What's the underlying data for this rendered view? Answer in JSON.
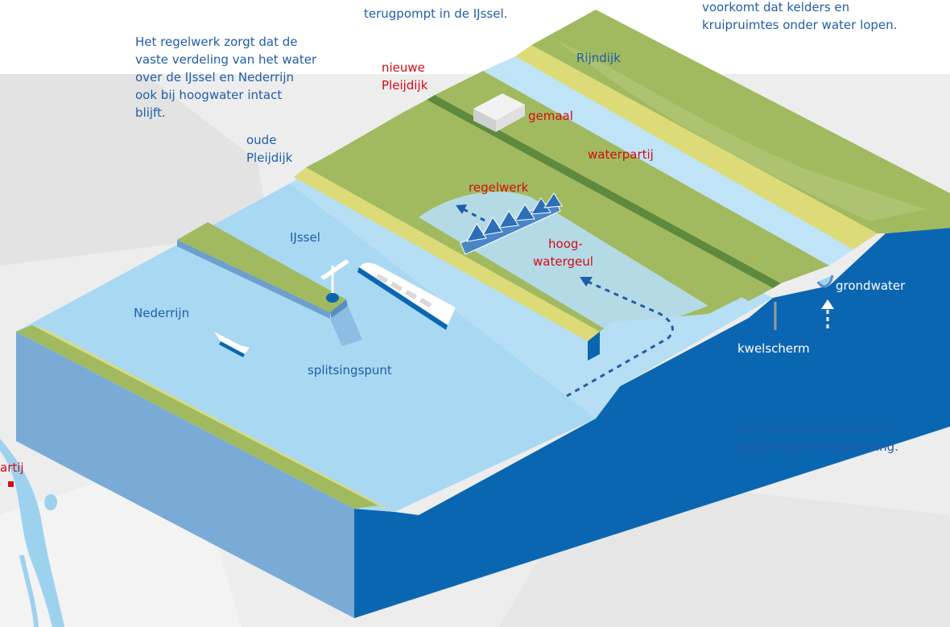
{
  "colors": {
    "background_map": "#ededee",
    "water_light": "#bfe3f7",
    "water_mid": "#9dd2ef",
    "water_deep": "#0b66b2",
    "grass": "#a1ba5f",
    "dike_yellow": "#dcdb78",
    "dike_dark": "#5f8a3e",
    "label_blue": "#1f5ea8",
    "label_red": "#d40b15"
  },
  "annotations": {
    "top_center_line": "terugpompt in de IJssel.",
    "top_right_lines": [
      "voorkomt dat kelders en",
      "kruipruimtes onder water lopen."
    ],
    "regelwerk_note": [
      "Het regelwerk zorgt dat de",
      "vaste verdeling van het water",
      "over de IJssel en Nederrijn",
      "ook bij hoogwater intact",
      "blijft."
    ],
    "kwelscherm_note": [
      "Het kwelscherm beschermt",
      "de dijk tegen verzwakking."
    ]
  },
  "labels": {
    "nieuwe_pleijdijk": [
      "nieuwe",
      "Pleijdijk"
    ],
    "oude_pleijdijk": [
      "oude",
      "Pleijdijk"
    ],
    "rijndijk": "Rijndijk",
    "gemaal": "gemaal",
    "waterpartij": "waterpartij",
    "regelwerk": "regelwerk",
    "hoogwatergeul": [
      "hoog-",
      "watergeul"
    ],
    "ijssel": "IJssel",
    "nederrijn": "Nederrijn",
    "splitsingspunt": "splitsingspunt",
    "grondwater": "grondwater",
    "kwelscherm": "kwelscherm",
    "map_fragment": "artij"
  },
  "icons": [
    "ship-icon",
    "small-boat-icon",
    "wind-turbine-icon",
    "pumping-station-icon",
    "regulator-gates-icon",
    "flow-arrow-icon",
    "groundwater-arrow-icon"
  ]
}
